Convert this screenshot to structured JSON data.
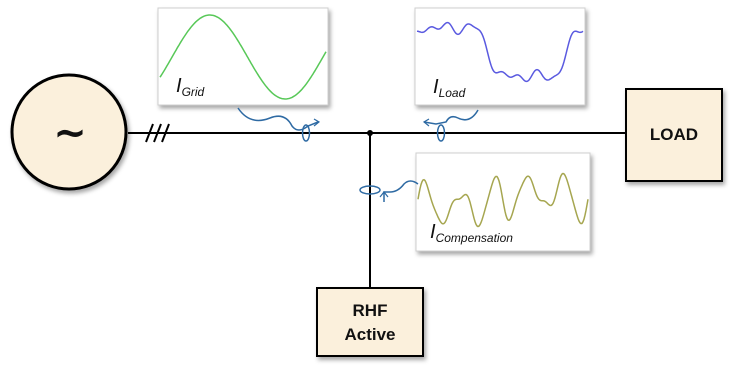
{
  "source_symbol": "~",
  "load_label": "LOAD",
  "filter_label_line1": "RHF",
  "filter_label_line2": "Active",
  "current_grid": {
    "main": "I",
    "sub": "Grid"
  },
  "current_load": {
    "main": "I",
    "sub": "Load"
  },
  "current_comp": {
    "main": "I",
    "sub": "Compensation"
  },
  "colors": {
    "grid_wave": "#58c858",
    "load_wave": "#5a5ae0",
    "comp_wave": "#a6a650",
    "sensor": "#2e6aa3",
    "line": "#000000",
    "box_fill": "#fbf0dc"
  }
}
